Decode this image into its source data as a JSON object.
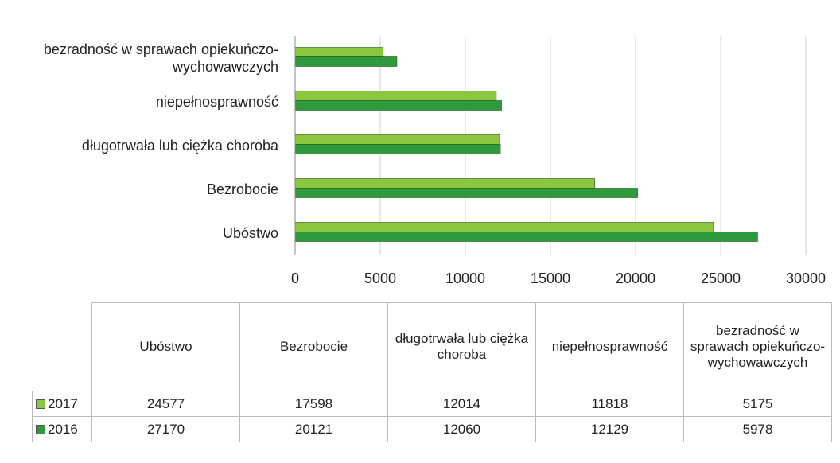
{
  "chart_data": {
    "type": "bar",
    "orientation": "horizontal",
    "categories": [
      "Ubóstwo",
      "Bezrobocie",
      "długotrwała lub ciężka choroba",
      "niepełnosprawność",
      "bezradność w sprawach opiekuńczo-wychowawczych"
    ],
    "series": [
      {
        "name": "2017",
        "color": "#8cc63f",
        "values": [
          24577,
          17598,
          12014,
          11818,
          5175
        ]
      },
      {
        "name": "2016",
        "color": "#2e9a3c",
        "values": [
          27170,
          20121,
          12060,
          12129,
          5978
        ]
      }
    ],
    "xlim": [
      0,
      30000
    ],
    "xticks": [
      0,
      5000,
      10000,
      15000,
      20000,
      25000,
      30000
    ],
    "grid": true
  }
}
